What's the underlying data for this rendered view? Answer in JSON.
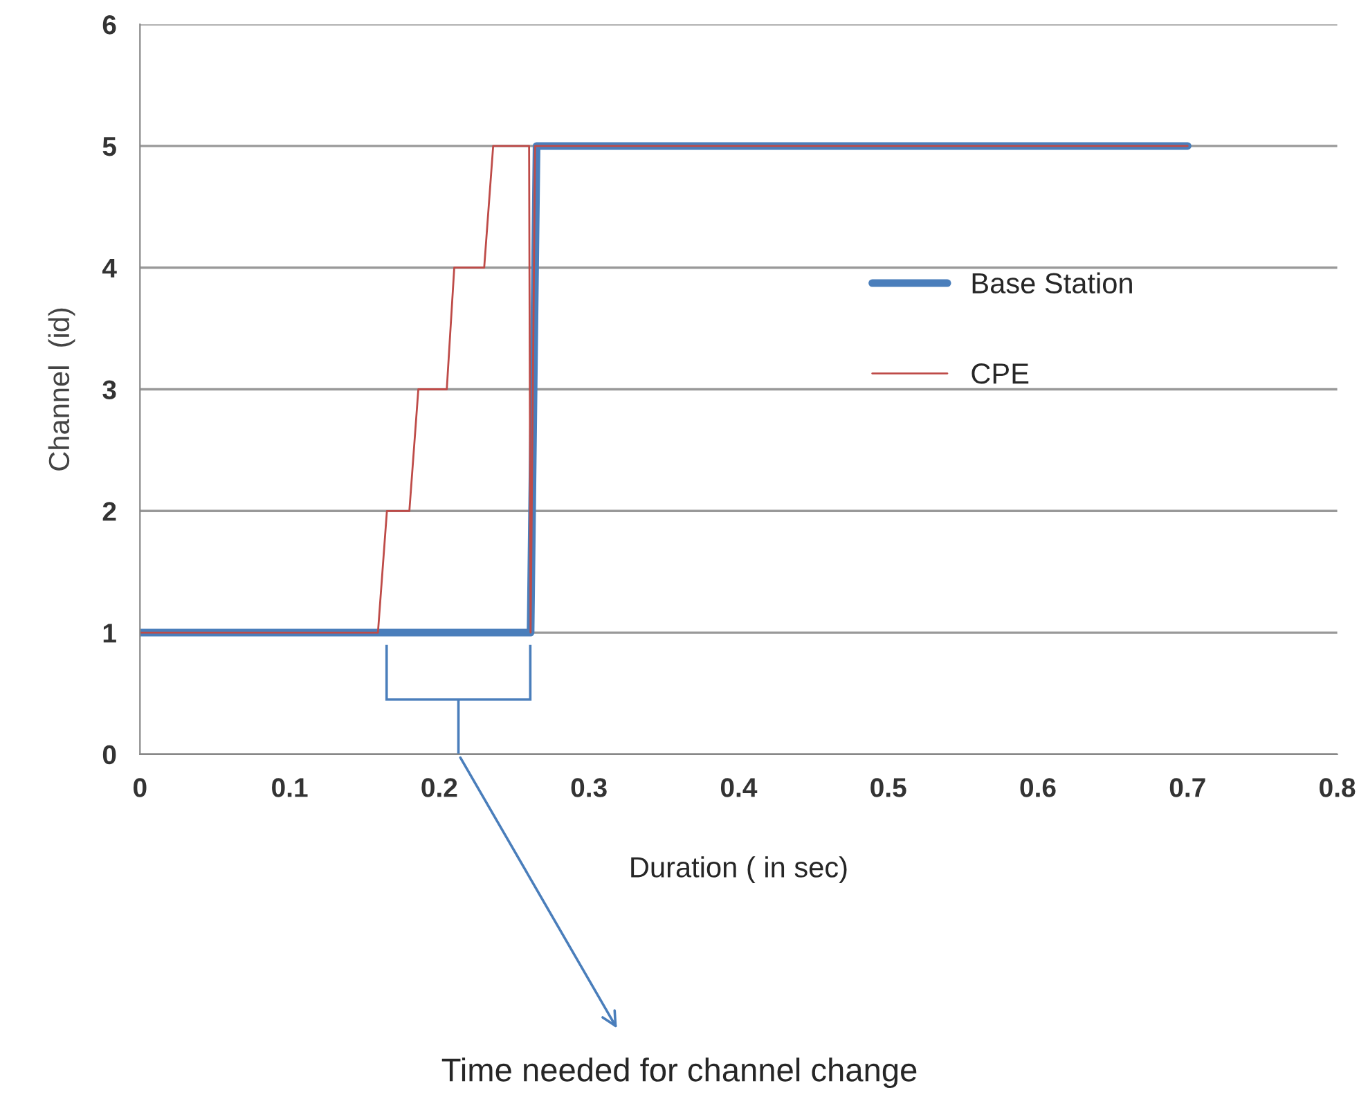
{
  "chart_data": {
    "type": "line",
    "xlabel": "Duration ( in sec)",
    "ylabel": "Channel  (id)",
    "series": [
      {
        "name": "Base Station",
        "color": "#4a7ebb",
        "x": [
          0,
          0.261,
          0.265,
          0.7
        ],
        "values": [
          1,
          1,
          5,
          5
        ]
      },
      {
        "name": "CPE",
        "color": "#be4b48",
        "x": [
          0,
          0.159,
          0.165,
          0.18,
          0.186,
          0.205,
          0.21,
          0.23,
          0.236,
          0.26,
          0.261,
          0.264,
          0.7
        ],
        "values": [
          1,
          1,
          2,
          2,
          3,
          3,
          4,
          4,
          5,
          5,
          1,
          5,
          5
        ]
      }
    ],
    "xlim": [
      0,
      0.8
    ],
    "xticks": [
      0,
      0.1,
      0.2,
      0.3,
      0.4,
      0.5,
      0.6,
      0.7,
      0.8
    ],
    "ylim": [
      0,
      6
    ],
    "yticks": [
      0,
      1,
      2,
      3,
      4,
      5,
      6
    ],
    "grid": "y",
    "legend": "right",
    "marker": "none",
    "line_style": "solid",
    "annotations": [
      "Time needed for channel change"
    ]
  }
}
